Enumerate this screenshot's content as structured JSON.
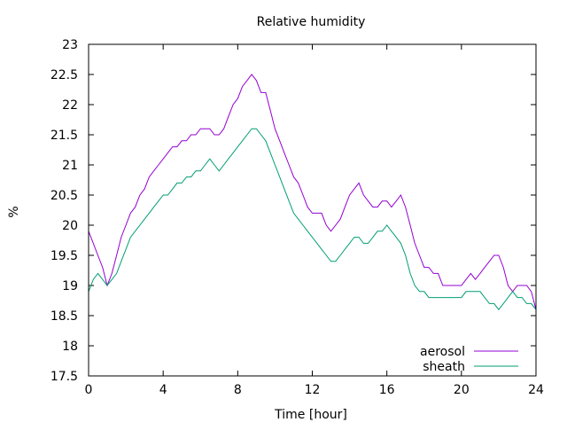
{
  "chart_data": {
    "type": "line",
    "title": "Relative humidity",
    "xlabel": "Time [hour]",
    "ylabel": "%",
    "xlim": [
      0,
      24
    ],
    "ylim": [
      17.5,
      23
    ],
    "xticks": [
      0,
      4,
      8,
      12,
      16,
      20,
      24
    ],
    "xtick_labels": [
      "0",
      "4",
      "8",
      "12",
      "16",
      "20",
      "24"
    ],
    "yticks": [
      17.5,
      18,
      18.5,
      19,
      19.5,
      20,
      20.5,
      21,
      21.5,
      22,
      22.5,
      23
    ],
    "ytick_labels": [
      "17.5",
      "18",
      "18.5",
      "19",
      "19.5",
      "20",
      "20.5",
      "21",
      "21.5",
      "22",
      "22.5",
      "23"
    ],
    "grid": false,
    "legend_position": "bottom-right",
    "series": [
      {
        "name": "aerosol",
        "color": "#9400d3",
        "x": [
          0,
          0.25,
          0.5,
          0.75,
          1,
          1.25,
          1.5,
          1.75,
          2,
          2.25,
          2.5,
          2.75,
          3,
          3.25,
          3.5,
          3.75,
          4,
          4.25,
          4.5,
          4.75,
          5,
          5.25,
          5.5,
          5.75,
          6,
          6.25,
          6.5,
          6.75,
          7,
          7.25,
          7.5,
          7.75,
          8,
          8.25,
          8.5,
          8.75,
          9,
          9.25,
          9.5,
          9.75,
          10,
          10.25,
          10.5,
          10.75,
          11,
          11.25,
          11.5,
          11.75,
          12,
          12.25,
          12.5,
          12.75,
          13,
          13.25,
          13.5,
          13.75,
          14,
          14.25,
          14.5,
          14.75,
          15,
          15.25,
          15.5,
          15.75,
          16,
          16.25,
          16.5,
          16.75,
          17,
          17.25,
          17.5,
          17.75,
          18,
          18.25,
          18.5,
          18.75,
          19,
          19.25,
          19.5,
          19.75,
          20,
          20.25,
          20.5,
          20.75,
          21,
          21.25,
          21.5,
          21.75,
          22,
          22.25,
          22.5,
          22.75,
          23,
          23.25,
          23.5,
          23.75,
          24
        ],
        "y": [
          19.9,
          19.7,
          19.5,
          19.3,
          19.0,
          19.2,
          19.5,
          19.8,
          20.0,
          20.2,
          20.3,
          20.5,
          20.6,
          20.8,
          20.9,
          21.0,
          21.1,
          21.2,
          21.3,
          21.3,
          21.4,
          21.4,
          21.5,
          21.5,
          21.6,
          21.6,
          21.6,
          21.5,
          21.5,
          21.6,
          21.8,
          22.0,
          22.1,
          22.3,
          22.4,
          22.5,
          22.4,
          22.2,
          22.2,
          21.9,
          21.6,
          21.4,
          21.2,
          21.0,
          20.8,
          20.7,
          20.5,
          20.3,
          20.2,
          20.2,
          20.2,
          20.0,
          19.9,
          20.0,
          20.1,
          20.3,
          20.5,
          20.6,
          20.7,
          20.5,
          20.4,
          20.3,
          20.3,
          20.4,
          20.4,
          20.3,
          20.4,
          20.5,
          20.3,
          20.0,
          19.7,
          19.5,
          19.3,
          19.3,
          19.2,
          19.2,
          19.0,
          19.0,
          19.0,
          19.0,
          19.0,
          19.1,
          19.2,
          19.1,
          19.2,
          19.3,
          19.4,
          19.5,
          19.5,
          19.3,
          19.0,
          18.9,
          19.0,
          19.0,
          19.0,
          18.9,
          18.6
        ]
      },
      {
        "name": "sheath",
        "color": "#009e73",
        "x": [
          0,
          0.25,
          0.5,
          0.75,
          1,
          1.25,
          1.5,
          1.75,
          2,
          2.25,
          2.5,
          2.75,
          3,
          3.25,
          3.5,
          3.75,
          4,
          4.25,
          4.5,
          4.75,
          5,
          5.25,
          5.5,
          5.75,
          6,
          6.25,
          6.5,
          6.75,
          7,
          7.25,
          7.5,
          7.75,
          8,
          8.25,
          8.5,
          8.75,
          9,
          9.25,
          9.5,
          9.75,
          10,
          10.25,
          10.5,
          10.75,
          11,
          11.25,
          11.5,
          11.75,
          12,
          12.25,
          12.5,
          12.75,
          13,
          13.25,
          13.5,
          13.75,
          14,
          14.25,
          14.5,
          14.75,
          15,
          15.25,
          15.5,
          15.75,
          16,
          16.25,
          16.5,
          16.75,
          17,
          17.25,
          17.5,
          17.75,
          18,
          18.25,
          18.5,
          18.75,
          19,
          19.25,
          19.5,
          19.75,
          20,
          20.25,
          20.5,
          20.75,
          21,
          21.25,
          21.5,
          21.75,
          22,
          22.25,
          22.5,
          22.75,
          23,
          23.25,
          23.5,
          23.75,
          24
        ],
        "y": [
          18.9,
          19.1,
          19.2,
          19.1,
          19.0,
          19.1,
          19.2,
          19.4,
          19.6,
          19.8,
          19.9,
          20.0,
          20.1,
          20.2,
          20.3,
          20.4,
          20.5,
          20.5,
          20.6,
          20.7,
          20.7,
          20.8,
          20.8,
          20.9,
          20.9,
          21.0,
          21.1,
          21.0,
          20.9,
          21.0,
          21.1,
          21.2,
          21.3,
          21.4,
          21.5,
          21.6,
          21.6,
          21.5,
          21.4,
          21.2,
          21.0,
          20.8,
          20.6,
          20.4,
          20.2,
          20.1,
          20.0,
          19.9,
          19.8,
          19.7,
          19.6,
          19.5,
          19.4,
          19.4,
          19.5,
          19.6,
          19.7,
          19.8,
          19.8,
          19.7,
          19.7,
          19.8,
          19.9,
          19.9,
          20.0,
          19.9,
          19.8,
          19.7,
          19.5,
          19.2,
          19.0,
          18.9,
          18.9,
          18.8,
          18.8,
          18.8,
          18.8,
          18.8,
          18.8,
          18.8,
          18.8,
          18.9,
          18.9,
          18.9,
          18.9,
          18.8,
          18.7,
          18.7,
          18.6,
          18.7,
          18.8,
          18.9,
          18.8,
          18.8,
          18.7,
          18.7,
          18.6
        ]
      }
    ]
  }
}
